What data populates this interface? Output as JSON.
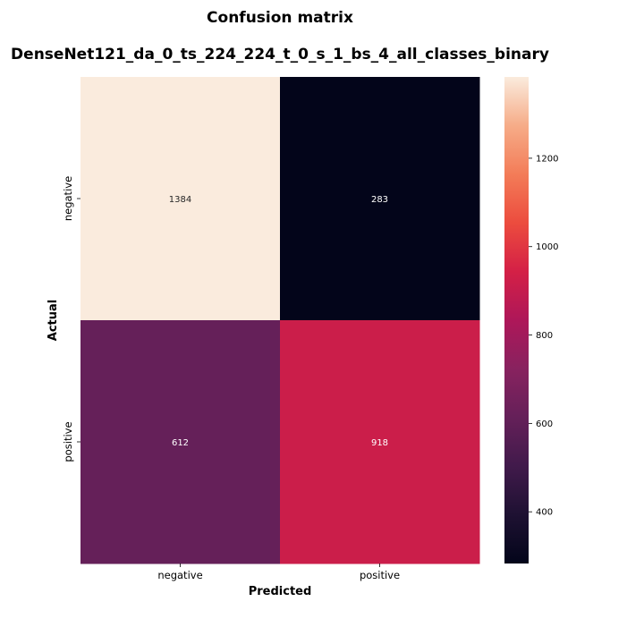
{
  "chart_data": {
    "type": "heatmap",
    "title": "Confusion matrix",
    "subtitle": "DenseNet121_da_0_ts_224_224_t_0_s_1_bs_4_all_classes_binary",
    "xlabel": "Predicted",
    "ylabel": "Actual",
    "x_categories": [
      "negative",
      "positive"
    ],
    "y_categories": [
      "negative",
      "positive"
    ],
    "values": [
      [
        1384,
        283
      ],
      [
        612,
        918
      ]
    ],
    "colormap": "rocket",
    "colorbar": {
      "range": [
        283,
        1384
      ],
      "ticks": [
        400,
        600,
        800,
        1000,
        1200
      ]
    },
    "grid": false,
    "legend": "colorbar-right"
  }
}
